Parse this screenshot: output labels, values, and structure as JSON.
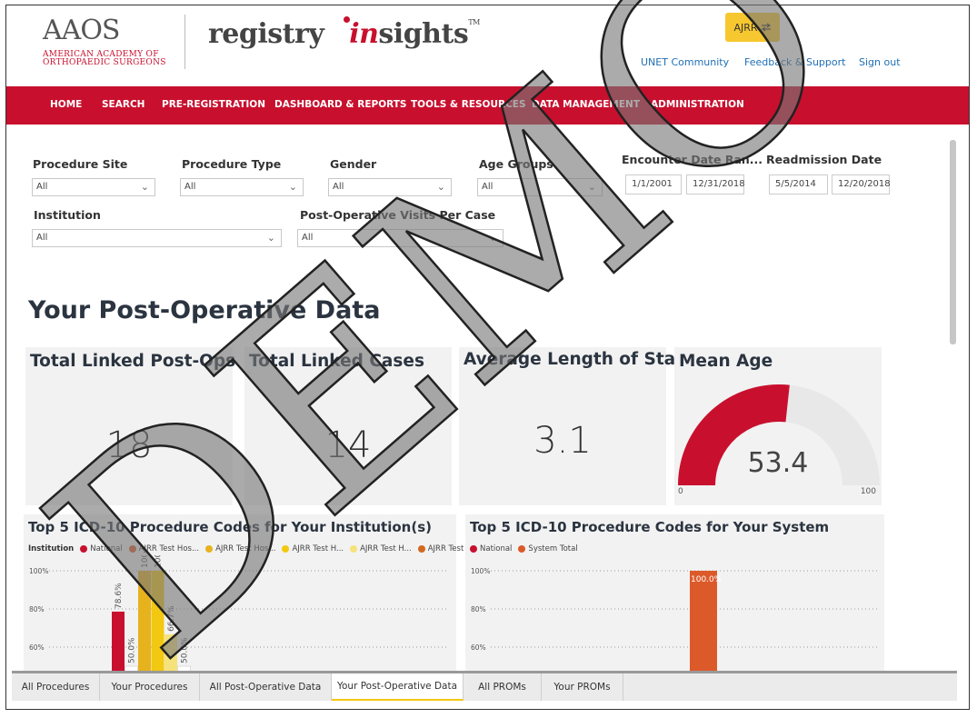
{
  "header": {
    "aaos_logo": "AAOS",
    "aaos_sub_line1": "American Academy of",
    "aaos_sub_line2": "Orthopaedic Surgeons",
    "registry_word": "registry",
    "insights_word_i": "in",
    "insights_word_rest": "sights",
    "tm": "TM",
    "ajrr_button": "AJRR",
    "links": [
      "UNET Community",
      "Feedback & Support",
      "Sign out"
    ]
  },
  "nav": [
    "HOME",
    "SEARCH",
    "PRE-REGISTRATION",
    "DASHBOARD & REPORTS",
    "TOOLS & RESOURCES",
    "DATA MANAGEMENT",
    "ADMINISTRATION"
  ],
  "filters": {
    "procedure_site": {
      "label": "Procedure Site",
      "value": "All"
    },
    "procedure_type": {
      "label": "Procedure Type",
      "value": "All"
    },
    "gender": {
      "label": "Gender",
      "value": "All"
    },
    "age_groups": {
      "label": "Age Groups",
      "value": "All"
    },
    "encounter_date": {
      "label": "Encounter Date Ran...",
      "start": "1/1/2001",
      "end": "12/31/2018"
    },
    "readmission_date": {
      "label": "Readmission Date",
      "start": "5/5/2014",
      "end": "12/20/2018"
    },
    "institution": {
      "label": "Institution",
      "value": "All"
    },
    "post_op_visits": {
      "label": "Post-Operative Visits Per Case",
      "value": "All"
    }
  },
  "section_title": "Your Post-Operative Data",
  "kpis": {
    "linked_post_ops": {
      "title": "Total Linked Post-Ops",
      "value": "18"
    },
    "linked_cases": {
      "title": "Total Linked Cases",
      "value": "14"
    },
    "avg_stay": {
      "title": "Average Length of Stay",
      "value": "3.1"
    },
    "mean_age": {
      "title": "Mean Age",
      "value": "53.4",
      "min": "0",
      "max": "100",
      "fraction": 0.534
    }
  },
  "chart_data": [
    {
      "type": "bar",
      "title": "Top 5 ICD-10 Procedure Codes for Your Institution(s)",
      "legend_title": "Institution",
      "legend_placement": "top-left",
      "yticks": [
        "100%",
        "80%",
        "60%"
      ],
      "ylim_visible": [
        55,
        100
      ],
      "series": [
        {
          "name": "National",
          "color": "#c8102e"
        },
        {
          "name": "AJRR Test Hos...",
          "color": "#dc5a2a"
        },
        {
          "name": "AJRR Test Hos...",
          "color": "#e6b31e"
        },
        {
          "name": "AJRR Test H...",
          "color": "#f2c811"
        },
        {
          "name": "AJRR Test H...",
          "color": "#f6e27a"
        },
        {
          "name": "AJRR Test H...",
          "color": "#d2691e"
        }
      ],
      "bars": [
        {
          "value": 78.6,
          "label": "78.6%",
          "color": "#c8102e"
        },
        {
          "value": 50.0,
          "label": "50.0%",
          "color": "#ffffff"
        },
        {
          "value": 100.0,
          "label": "100.0%",
          "color": "#e6b31e"
        },
        {
          "value": 100.0,
          "label": "100.0%",
          "color": "#f2c811"
        },
        {
          "value": 66.7,
          "label": "66.7%",
          "color": "#f6e27a"
        },
        {
          "value": 50.0,
          "label": "50.0%",
          "color": "#ffffff"
        }
      ]
    },
    {
      "type": "bar",
      "title": "Top 5 ICD-10 Procedure Codes for Your System",
      "legend_placement": "top-left",
      "yticks": [
        "100%",
        "80%",
        "60%"
      ],
      "ylim_visible": [
        55,
        100
      ],
      "series": [
        {
          "name": "National",
          "color": "#c8102e"
        },
        {
          "name": "System Total",
          "color": "#dc5a2a"
        }
      ],
      "bars": [
        {
          "value": 100.0,
          "label": "100.0%",
          "color": "#dc5a2a"
        }
      ]
    }
  ],
  "tabs": [
    "All Procedures",
    "Your Procedures",
    "All Post-Operative Data",
    "Your Post-Operative Data",
    "All PROMs",
    "Your PROMs"
  ],
  "watermark": "DEMO"
}
